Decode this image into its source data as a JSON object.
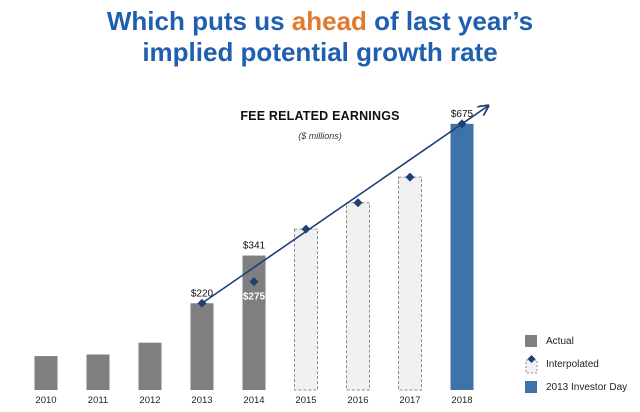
{
  "headline": {
    "line1_before": "Which puts us ",
    "line1_accent": "ahead",
    "line1_after": " of last year’s",
    "line2": "implied potential growth rate"
  },
  "colors": {
    "headline": "#1f5fb0",
    "accent": "#e07a2e",
    "actual": "#7f7f7f",
    "interpolated_fill": "#f1f1f1",
    "interpolated_border": "#8c8c8c",
    "investor_day": "#3e73a9",
    "trend_line": "#1f3f77"
  },
  "legend": {
    "actual": "Actual",
    "interpolated": "Interpolated",
    "investor_day": "2013 Investor Day"
  },
  "chart_data": {
    "type": "bar",
    "title": "FEE RELATED EARNINGS",
    "subtitle": "($ millions)",
    "categories": [
      "2010",
      "2011",
      "2012",
      "2013",
      "2014",
      "2015",
      "2016",
      "2017",
      "2018"
    ],
    "values": [
      86,
      90,
      120,
      220,
      341,
      408,
      475,
      540,
      675
    ],
    "bar_kinds": [
      "actual",
      "actual",
      "actual",
      "actual",
      "actual",
      "interpolated",
      "interpolated",
      "interpolated",
      "investor_day"
    ],
    "ylim": [
      0,
      700
    ],
    "trend_series": {
      "x": [
        "2013",
        "2014",
        "2015",
        "2016",
        "2017",
        "2018"
      ],
      "values": [
        220,
        275,
        408,
        475,
        540,
        675
      ]
    },
    "data_labels": [
      {
        "category": "2013",
        "text": "$220",
        "value": 220,
        "style": "above"
      },
      {
        "category": "2014",
        "text": "$341",
        "value": 341,
        "style": "above"
      },
      {
        "category": "2014",
        "text": "$275",
        "value": 275,
        "style": "inside"
      },
      {
        "category": "2018",
        "text": "$675",
        "value": 675,
        "style": "above"
      }
    ]
  }
}
